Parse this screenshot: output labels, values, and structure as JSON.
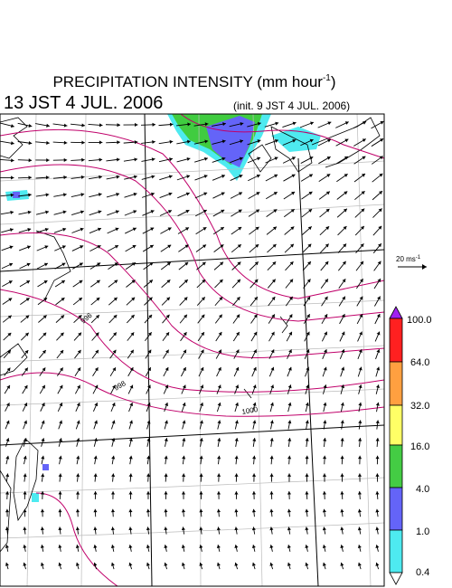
{
  "header": {
    "title": "PRECIPITATION INTENSITY (mm hour",
    "title_superscript": "-1",
    "title_close": ")",
    "valid_time": "13 JST 4 JUL. 2006",
    "init_time": "(init. 9 JST 4 JUL. 2006)"
  },
  "wind_scale": {
    "label": "20 ms",
    "superscript": "-1"
  },
  "colorbar": {
    "labels": [
      "100.0",
      "64.0",
      "32.0",
      "16.0",
      "4.0",
      "1.0",
      "0.4"
    ]
  },
  "contour_labels": [
    "996",
    "998",
    "1000"
  ]
}
